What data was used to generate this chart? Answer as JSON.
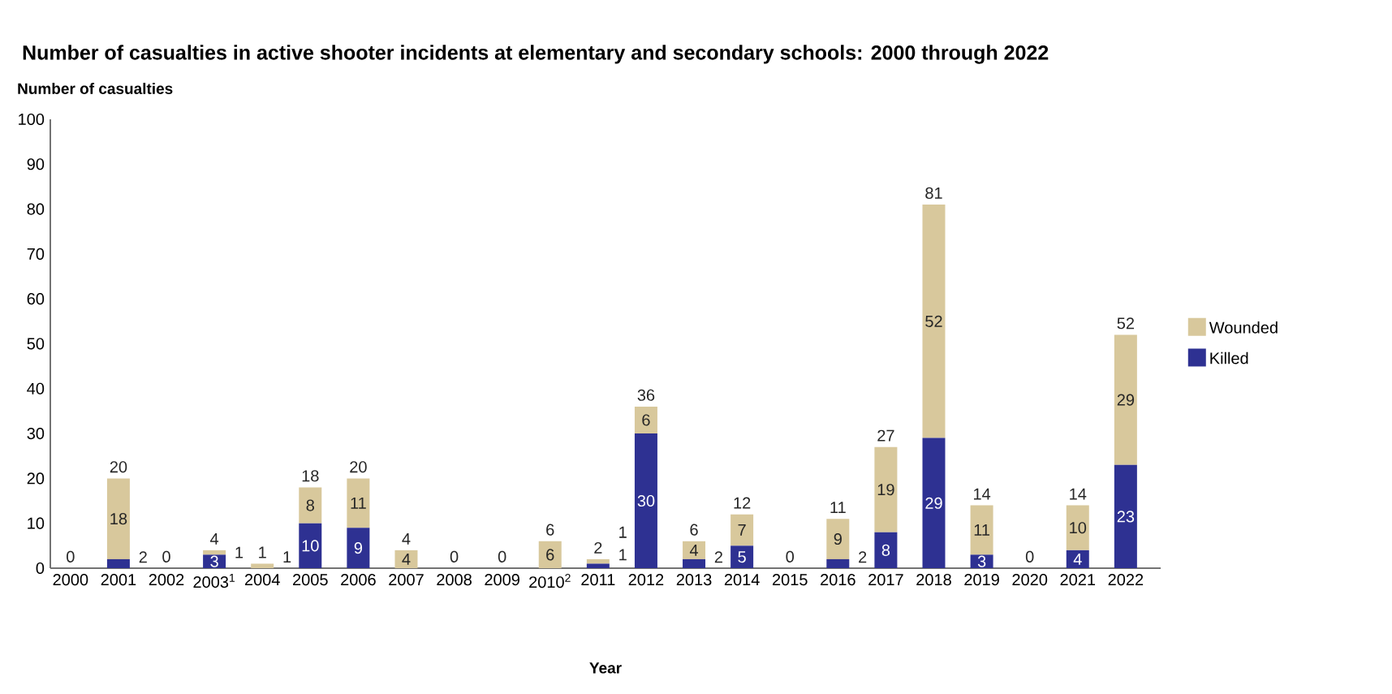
{
  "chart_data": {
    "type": "bar",
    "stacked": true,
    "title": "Number of casualties in active shooter incidents at elementary and secondary schools: 2000 through 2022",
    "ylabel": "Number of casualties",
    "xlabel": "Year",
    "categories": [
      "2000",
      "2001",
      "2002",
      "2003$^{1}$",
      "2004",
      "2005",
      "2006",
      "2007",
      "2008",
      "2009",
      "2010$^{2}$",
      "2011",
      "2012",
      "2013",
      "2014",
      "2015",
      "2016",
      "2017",
      "2018",
      "2019",
      "2020",
      "2021",
      "2022"
    ],
    "series": [
      {
        "name": "Killed",
        "color": "#2e3192",
        "values": [
          0,
          2,
          0,
          3,
          0,
          10,
          9,
          0,
          0,
          0,
          0,
          1,
          30,
          2,
          5,
          0,
          2,
          8,
          29,
          3,
          0,
          4,
          23
        ],
        "value_labels": [
          null,
          "2",
          null,
          "3",
          null,
          "10",
          "9",
          null,
          null,
          null,
          null,
          "1",
          "30",
          "2",
          "5",
          null,
          "2",
          "8",
          "29",
          "3",
          null,
          "4",
          "23"
        ]
      },
      {
        "name": "Wounded",
        "color": "#d8c89c",
        "values": [
          0,
          18,
          0,
          1,
          1,
          8,
          11,
          4,
          0,
          0,
          6,
          1,
          6,
          4,
          7,
          0,
          9,
          19,
          52,
          11,
          0,
          10,
          29
        ],
        "value_labels": [
          null,
          "18",
          null,
          "1",
          "1",
          "8",
          "11",
          "4",
          null,
          null,
          "6",
          "1",
          "6",
          "4",
          "7",
          null,
          "9",
          "19",
          "52",
          "11",
          null,
          "10",
          "29"
        ]
      }
    ],
    "totals": [
      "0",
      "20",
      "0",
      "4",
      "1",
      "18",
      "20",
      "4",
      "0",
      "0",
      "6",
      "2",
      "36",
      "6",
      "12",
      "0",
      "11",
      "27",
      "81",
      "14",
      "0",
      "14",
      "52"
    ],
    "ylim": [
      0,
      100
    ],
    "yticks": [
      0,
      10,
      20,
      30,
      40,
      50,
      60,
      70,
      80,
      90,
      100
    ],
    "legend": "right"
  }
}
